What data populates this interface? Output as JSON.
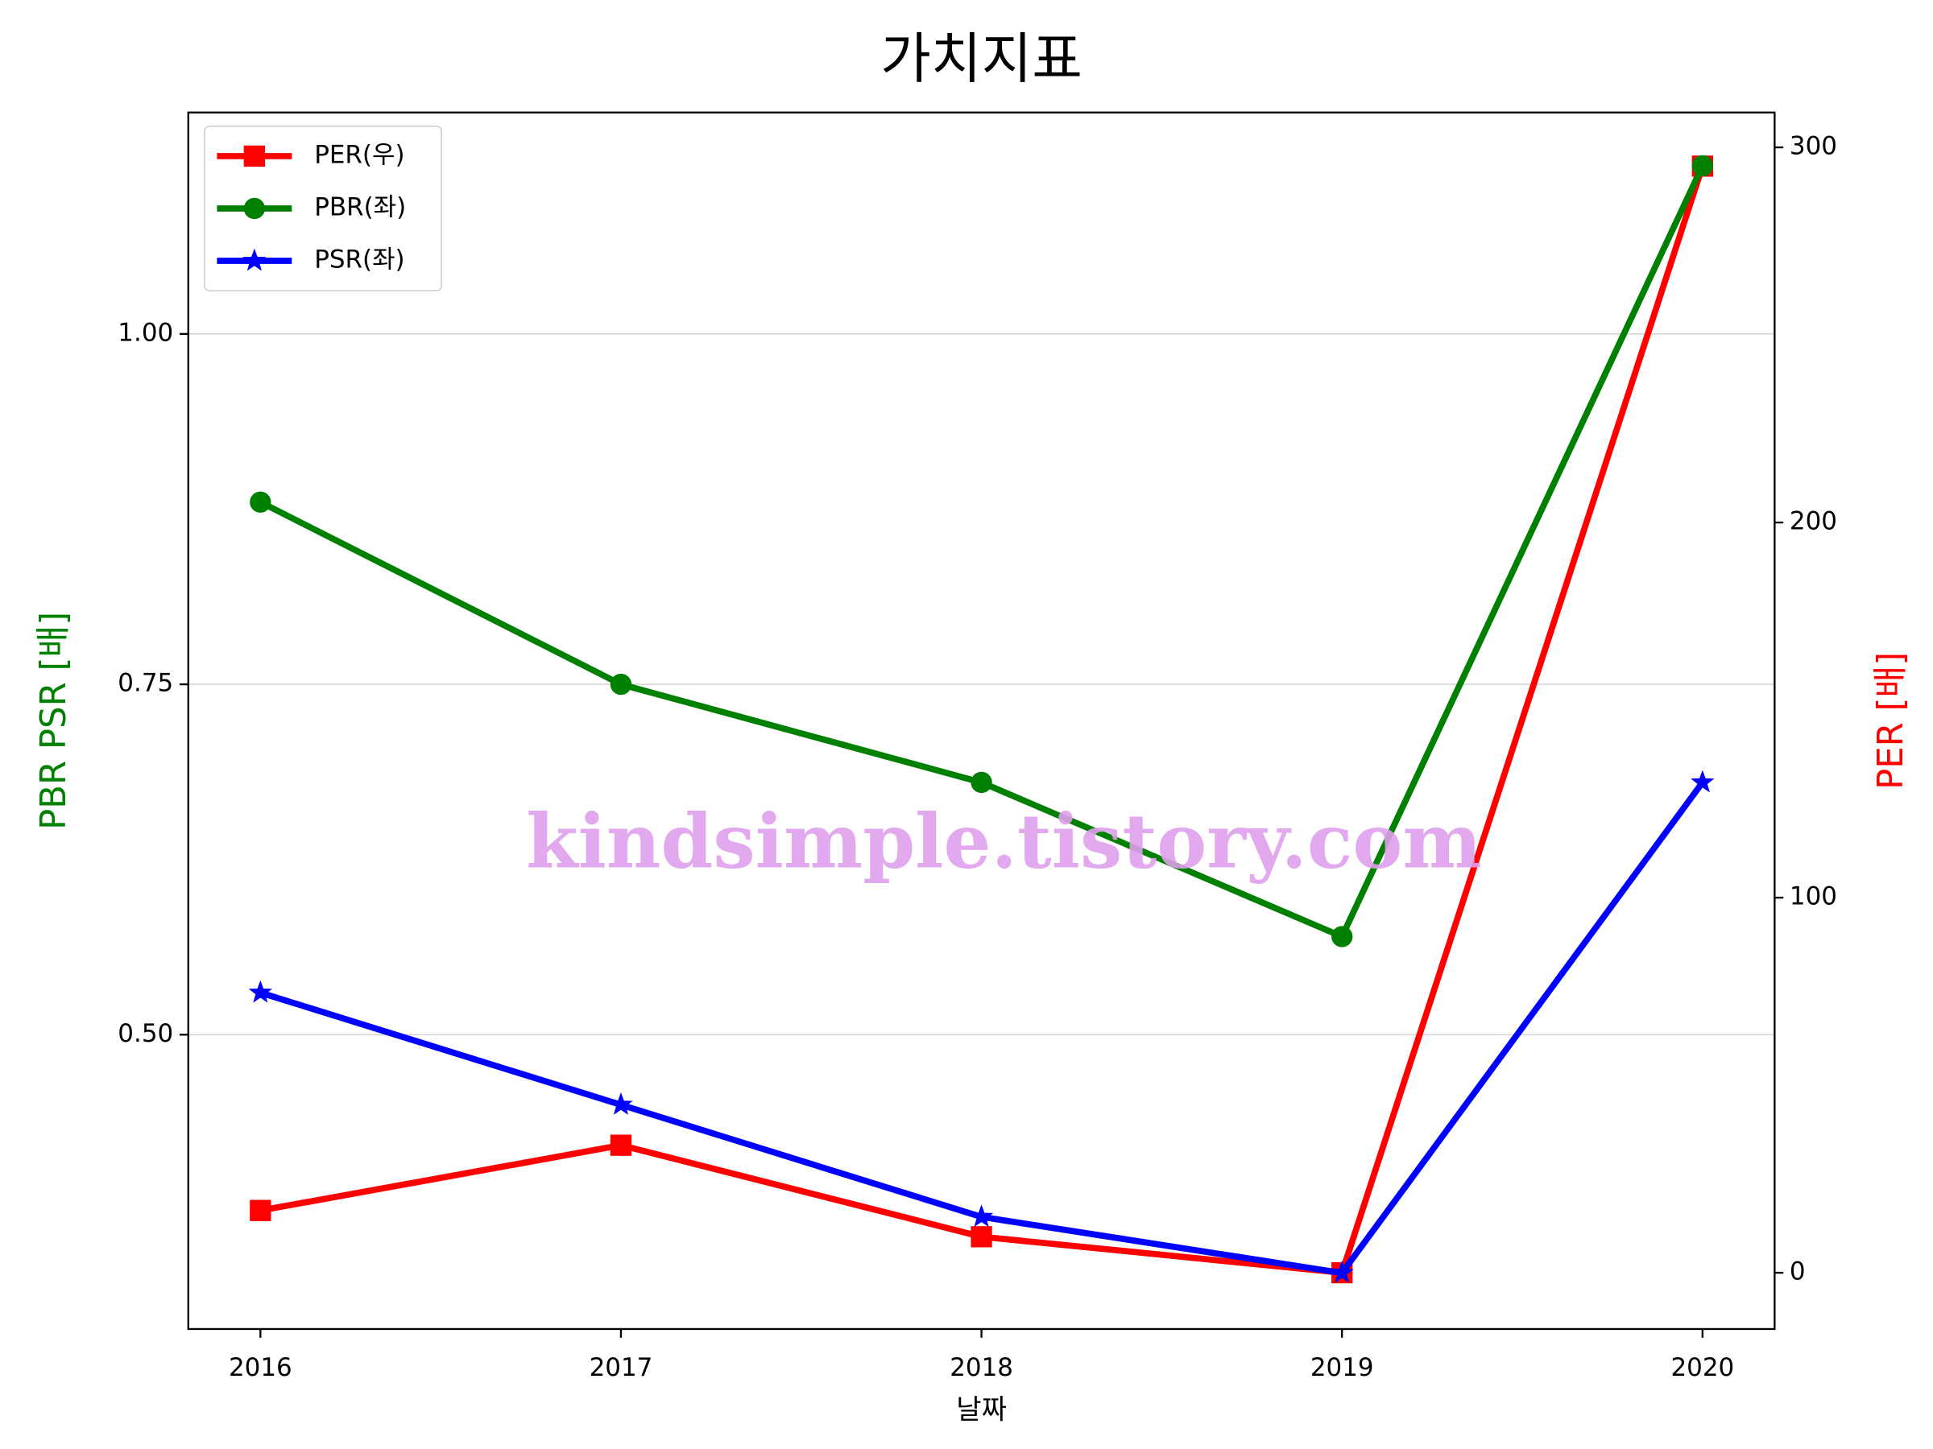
{
  "chart_data": {
    "type": "line",
    "title": "가치지표",
    "xlabel": "날짜",
    "ylabel": "PBR PSR [배]",
    "y2label": "PER [배]",
    "ylabel_color": "#008000",
    "y2label_color": "#ff0000",
    "watermark": "kindsimple.tistory.com",
    "x": [
      2016,
      2017,
      2018,
      2019,
      2020
    ],
    "xlim": [
      2015.8,
      2020.2
    ],
    "xticks": [
      2016,
      2017,
      2018,
      2019,
      2020
    ],
    "ylim": [
      0.29,
      1.158
    ],
    "yticks": [
      {
        "value": 0.5,
        "label": "0.50"
      },
      0.75,
      {
        "value": 1,
        "label": "1.00"
      }
    ],
    "y2lim": [
      -15,
      309.3
    ],
    "y2ticks": [
      0,
      100,
      200,
      300
    ],
    "grid": true,
    "legend": "upper left",
    "series": [
      {
        "name": "PER(우)",
        "color": "#ff0000",
        "marker": "square",
        "axis": "y2",
        "values": [
          16.6,
          34,
          9.6,
          0,
          295
        ]
      },
      {
        "name": "PBR(좌)",
        "color": "#008000",
        "marker": "circle",
        "values": [
          0.88,
          0.75,
          0.68,
          0.57,
          1.12
        ]
      },
      {
        "name": "PSR(좌)",
        "color": "#0000ff",
        "marker": "star",
        "values": [
          0.53,
          0.45,
          0.37,
          0.33,
          0.68
        ]
      }
    ]
  }
}
